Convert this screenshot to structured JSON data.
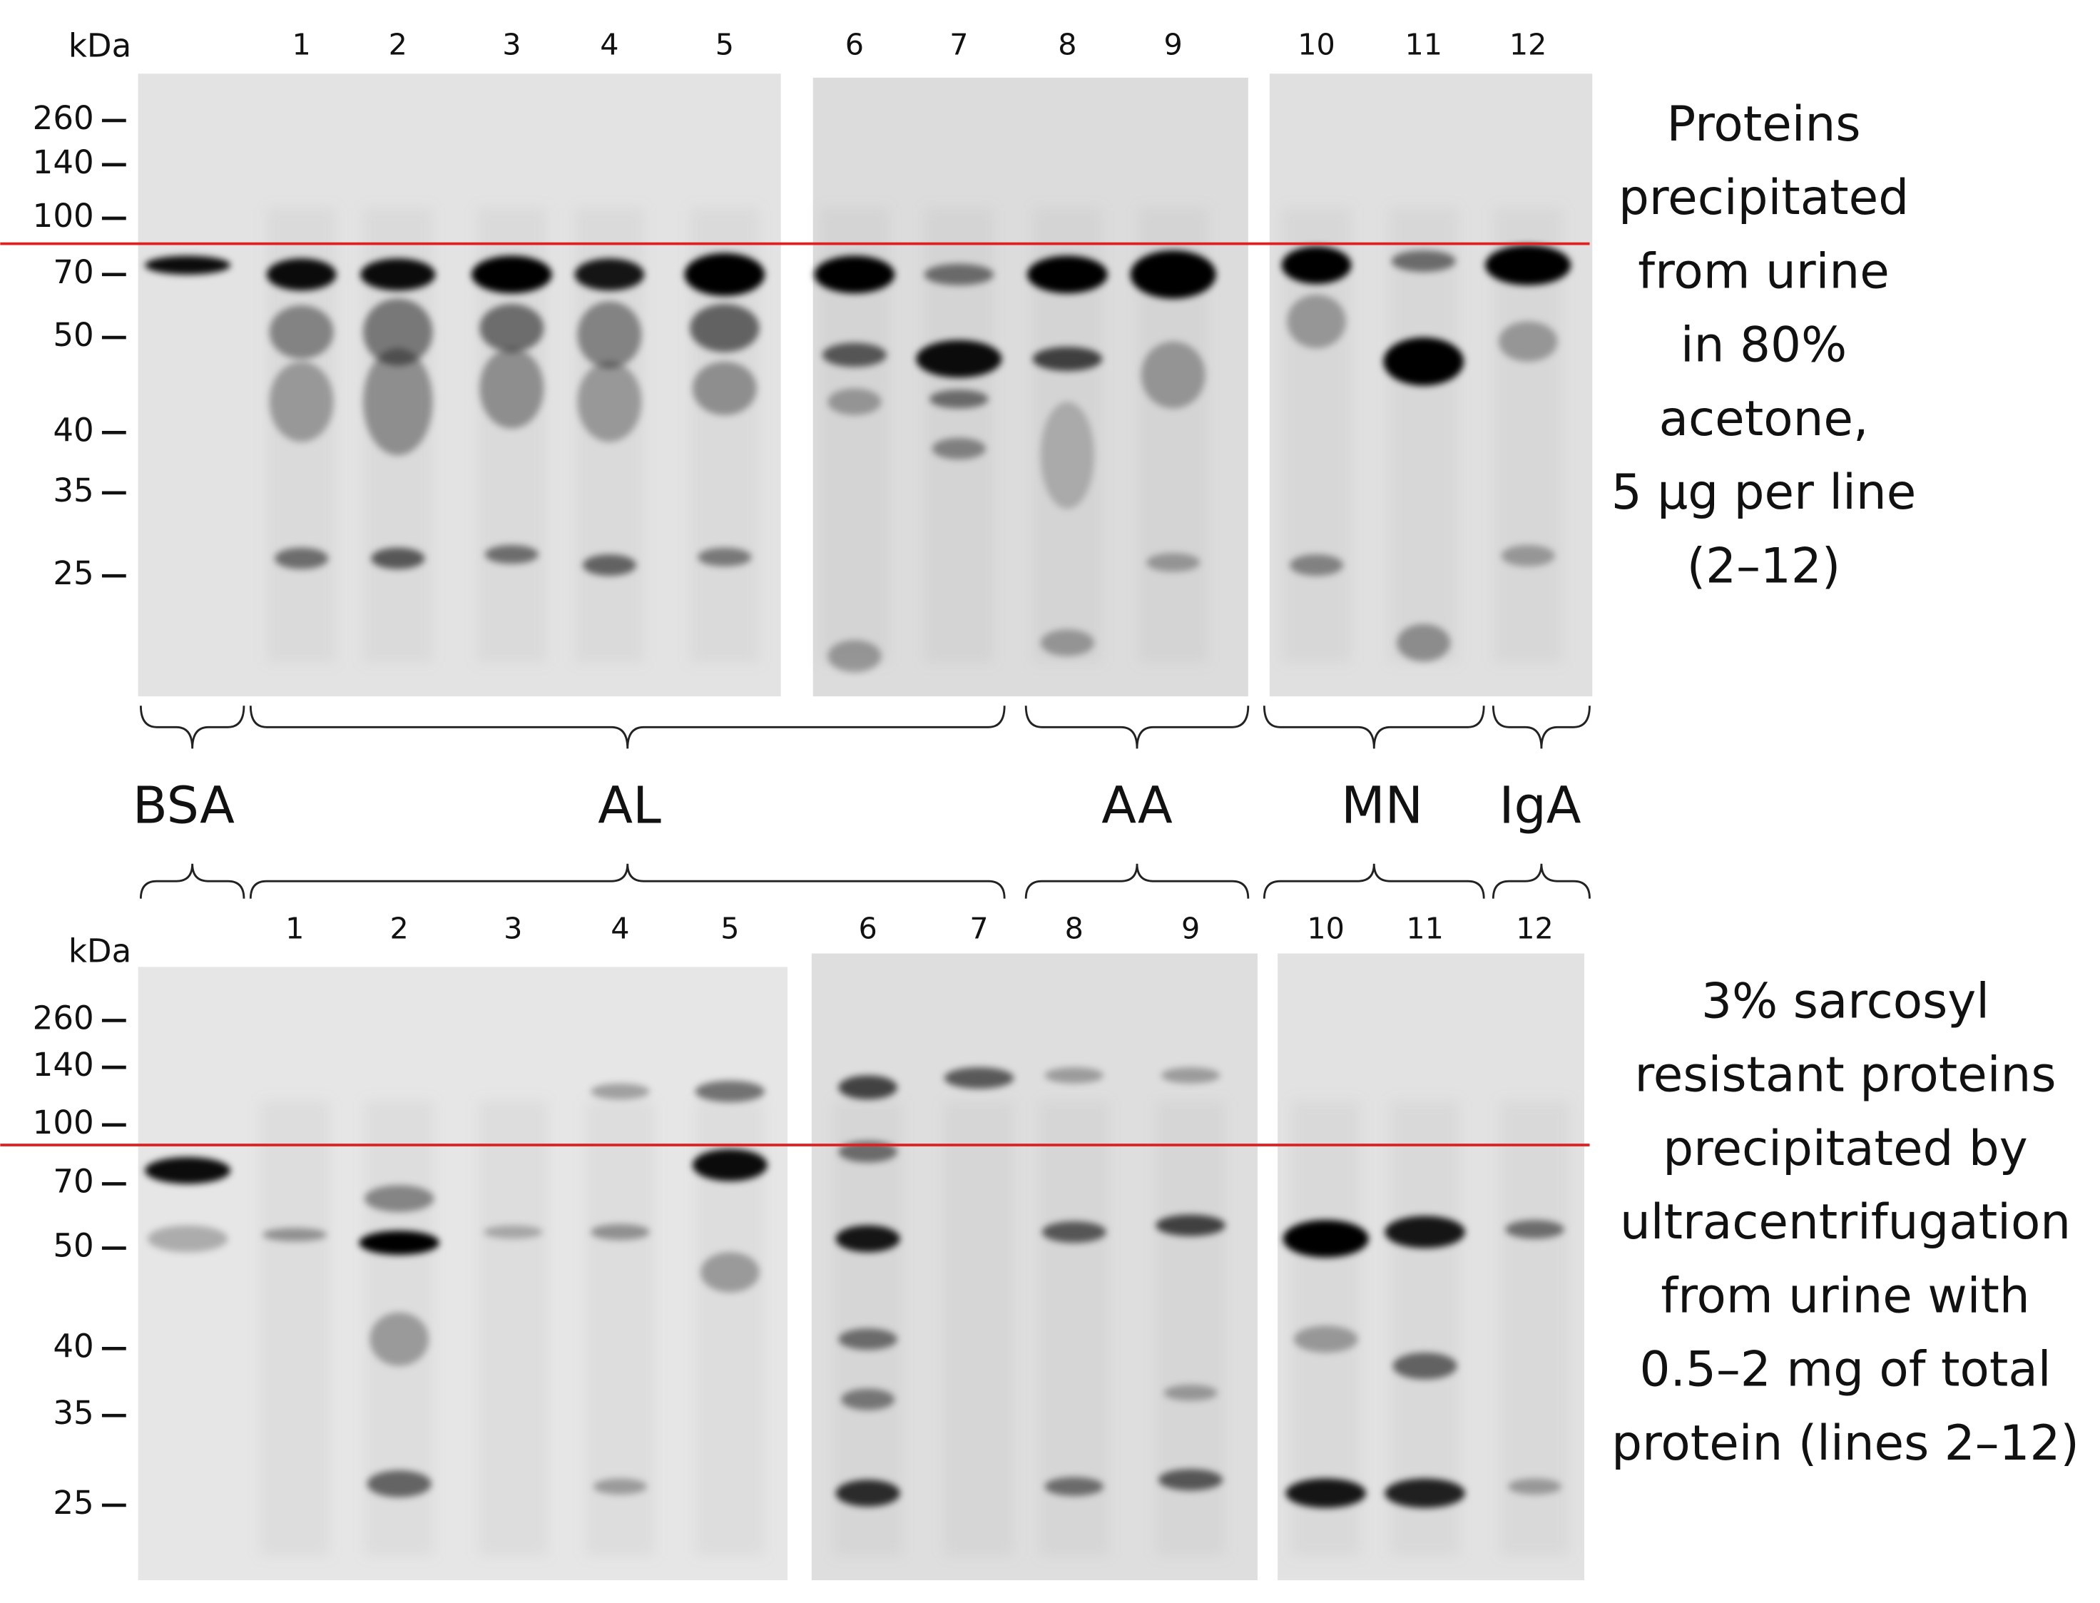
{
  "top_panel": {
    "unit": "kDa",
    "markers": [
      "260",
      "140",
      "100",
      "70",
      "50",
      "40",
      "35",
      "25"
    ],
    "lanes": [
      "1",
      "2",
      "3",
      "4",
      "5",
      "6",
      "7",
      "8",
      "9",
      "10",
      "11",
      "12"
    ],
    "caption": [
      "Proteins",
      "precipitated",
      "from urine",
      "in 80%",
      "acetone,",
      "5 μg per line",
      "(2–12)"
    ]
  },
  "groups": [
    "BSA",
    "AL",
    "AA",
    "MN",
    "IgA"
  ],
  "bottom_panel": {
    "unit": "kDa",
    "markers": [
      "260",
      "140",
      "100",
      "70",
      "50",
      "40",
      "35",
      "25"
    ],
    "lanes": [
      "1",
      "2",
      "3",
      "4",
      "5",
      "6",
      "7",
      "8",
      "9",
      "10",
      "11",
      "12"
    ],
    "caption": [
      "3% sarcosyl",
      "resistant proteins",
      "precipitated by",
      "ultracentrifugation",
      "from urine with",
      "0.5–2 mg of total",
      "protein (lines 2–12)"
    ]
  }
}
